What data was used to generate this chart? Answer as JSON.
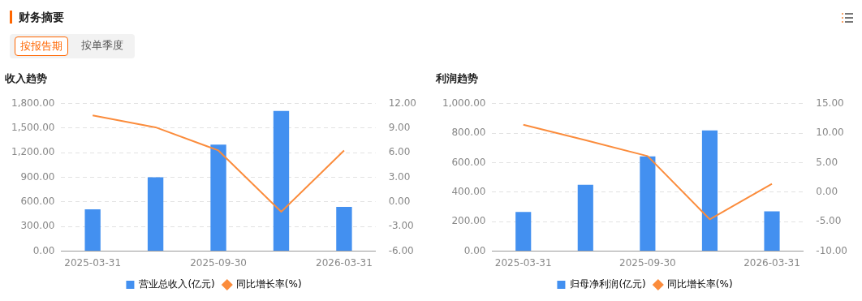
{
  "chart_data": [
    {
      "type": "other",
      "title": "财务摘要",
      "annotations": [
        "按报告期",
        "按单季度"
      ]
    },
    {
      "type": "bar",
      "title": "收入趋势",
      "categories": [
        "2025-03-31",
        null,
        "2025-09-30",
        null,
        "2026-03-31"
      ],
      "series": [
        {
          "name": "营业总收入(亿元)",
          "type": "bar",
          "color": "#4390f0",
          "values": [
            510,
            900,
            1300,
            1710,
            540
          ]
        },
        {
          "name": "同比增长率(%)",
          "type": "line",
          "axis": "y2",
          "color": "#fb8c3c",
          "values": [
            10.55,
            9.1,
            6.28,
            -1.2,
            6.28
          ]
        }
      ],
      "ylim": [
        0,
        1800
      ],
      "yticks": [
        {
          "value": 0,
          "label": "0.00"
        },
        {
          "value": 300,
          "label": "300.00"
        },
        {
          "value": 600,
          "label": "600.00"
        },
        {
          "value": 900,
          "label": "900.00"
        },
        {
          "value": 1200,
          "label": "1,200.00"
        },
        {
          "value": 1500,
          "label": "1,500.00"
        },
        {
          "value": 1800,
          "label": "1,800.00"
        }
      ],
      "y2lim": [
        -6,
        12
      ],
      "y2ticks": [
        {
          "value": -6,
          "label": "-6.00"
        },
        {
          "value": -3,
          "label": "-3.00"
        },
        {
          "value": 0,
          "label": "0.00"
        },
        {
          "value": 3,
          "label": "3.00"
        },
        {
          "value": 6,
          "label": "6.00"
        },
        {
          "value": 9,
          "label": "9.00"
        },
        {
          "value": 12,
          "label": "12.00"
        }
      ],
      "grid": "y",
      "legend": "bottom",
      "marker": "none",
      "line_style": "solid"
    },
    {
      "type": "bar",
      "title": "利润趋势",
      "categories": [
        "2025-03-31",
        null,
        "2025-09-30",
        null,
        "2026-03-31"
      ],
      "series": [
        {
          "name": "归母净利润(亿元)",
          "type": "bar",
          "color": "#4390f0",
          "values": [
            266,
            450,
            642,
            818,
            270
          ]
        },
        {
          "name": "同比增长率(%)",
          "type": "line",
          "axis": "y2",
          "color": "#fb8c3c",
          "values": [
            11.4,
            8.8,
            6.1,
            -4.6,
            1.4
          ]
        }
      ],
      "ylim": [
        0,
        1000
      ],
      "yticks": [
        {
          "value": 0,
          "label": "0.00"
        },
        {
          "value": 200,
          "label": "200.00"
        },
        {
          "value": 400,
          "label": "400.00"
        },
        {
          "value": 600,
          "label": "600.00"
        },
        {
          "value": 800,
          "label": "800.00"
        },
        {
          "value": 1000,
          "label": "1,000.00"
        }
      ],
      "y2lim": [
        -10,
        15
      ],
      "y2ticks": [
        {
          "value": -10,
          "label": "-10.00"
        },
        {
          "value": -5,
          "label": "-5.00"
        },
        {
          "value": 0,
          "label": "0.00"
        },
        {
          "value": 5,
          "label": "5.00"
        },
        {
          "value": 10,
          "label": "10.00"
        },
        {
          "value": 15,
          "label": "15.00"
        }
      ],
      "grid": "y",
      "legend": "bottom",
      "marker": "none",
      "line_style": "solid"
    }
  ]
}
